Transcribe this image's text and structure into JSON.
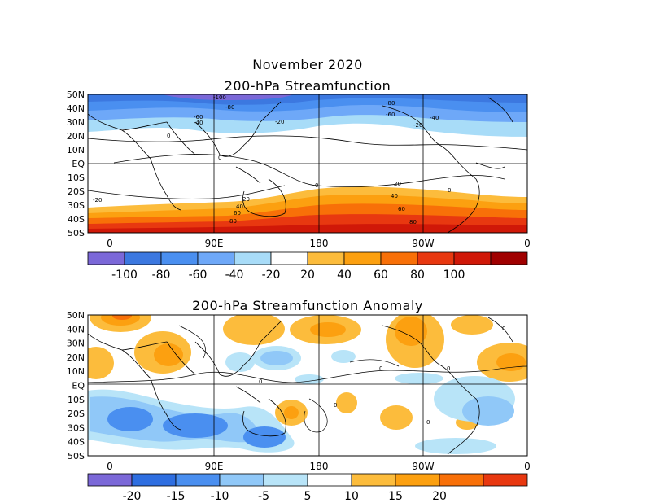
{
  "titles": {
    "main": "November 2020",
    "top": "200-hPa Streamfunction",
    "bottom": "200-hPa Streamfunction Anomaly"
  },
  "lat_labels": [
    "50N",
    "40N",
    "30N",
    "20N",
    "10N",
    "EQ",
    "10S",
    "20S",
    "30S",
    "40S",
    "50S"
  ],
  "lon_labels": [
    "0",
    "90E",
    "180",
    "90W",
    "0"
  ],
  "top_colorbar": {
    "labels": [
      "-100",
      "-80",
      "-60",
      "-40",
      "-20",
      "20",
      "40",
      "60",
      "80",
      "100"
    ],
    "colors": [
      "#7b68d8",
      "#3c78e0",
      "#4a8ff0",
      "#6ea8f8",
      "#a8dcf8",
      "#ffffff",
      "#fcbc3c",
      "#fca010",
      "#f87008",
      "#e83810",
      "#d01808",
      "#a00000"
    ]
  },
  "bottom_colorbar": {
    "labels": [
      "-20",
      "-15",
      "-10",
      "-5",
      "5",
      "10",
      "15",
      "20"
    ],
    "colors": [
      "#7b68d8",
      "#2e6ee0",
      "#4a8ff0",
      "#90c8f8",
      "#b8e4f8",
      "#ffffff",
      "#fcbc3c",
      "#fca010",
      "#f87008",
      "#e83810"
    ]
  },
  "top_map_contour_labels": [
    "-100",
    "-80",
    "-60",
    "-40",
    "-20",
    "-80",
    "-60",
    "-40",
    "-20",
    "0",
    "0",
    "0",
    "0",
    "-20",
    "20",
    "20",
    "40",
    "40",
    "60",
    "60",
    "80",
    "80"
  ],
  "bottom_map_contour_labels": [
    "0",
    "0",
    "0",
    "0",
    "0",
    "0"
  ]
}
